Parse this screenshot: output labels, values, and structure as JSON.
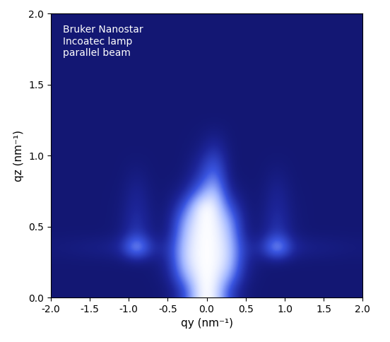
{
  "chart_data": {
    "type": "heatmap",
    "xlabel": "qy (nm⁻¹)",
    "ylabel": "qz (nm⁻¹)",
    "annotations": [
      "Bruker Nanostar\nIncoatec lamp\nparallel beam"
    ],
    "xlim": [
      -2.0,
      2.0
    ],
    "ylim": [
      0.0,
      2.0
    ],
    "xticks": [
      -2.0,
      -1.5,
      -1.0,
      -0.5,
      0.0,
      0.5,
      1.0,
      1.5,
      2.0
    ],
    "yticks": [
      0.0,
      0.5,
      1.0,
      1.5,
      2.0
    ],
    "x": [
      -1.9,
      -1.7,
      -1.5,
      -1.3,
      -1.1,
      -0.9,
      -0.7,
      -0.5,
      -0.3,
      -0.1,
      0.1,
      0.3,
      0.5,
      0.7,
      0.9,
      1.1,
      1.3,
      1.5,
      1.7,
      1.9
    ],
    "y": [
      0.05,
      0.15,
      0.25,
      0.35,
      0.45,
      0.55,
      0.65,
      0.75,
      0.85,
      0.95,
      1.05,
      1.15,
      1.25,
      1.35,
      1.45,
      1.55,
      1.65,
      1.75,
      1.85,
      1.95
    ],
    "zlim": [
      0,
      100
    ],
    "cells": [
      [
        12,
        12,
        12,
        12,
        12,
        12,
        12,
        14,
        40,
        100,
        100,
        40,
        14,
        12,
        12,
        12,
        12,
        12,
        12,
        12
      ],
      [
        12,
        12,
        12,
        12,
        12,
        12,
        12,
        20,
        70,
        100,
        100,
        70,
        20,
        12,
        12,
        12,
        12,
        12,
        12,
        12
      ],
      [
        12,
        12,
        12,
        12,
        12,
        13,
        14,
        25,
        85,
        100,
        100,
        85,
        25,
        14,
        13,
        12,
        12,
        12,
        12,
        12
      ],
      [
        16,
        18,
        20,
        22,
        30,
        95,
        30,
        30,
        85,
        100,
        100,
        85,
        30,
        30,
        95,
        30,
        22,
        20,
        18,
        16
      ],
      [
        12,
        12,
        12,
        12,
        16,
        40,
        16,
        18,
        80,
        100,
        100,
        80,
        18,
        16,
        40,
        16,
        12,
        12,
        12,
        12
      ],
      [
        12,
        12,
        12,
        12,
        15,
        35,
        15,
        16,
        70,
        100,
        100,
        70,
        16,
        15,
        35,
        15,
        12,
        12,
        12,
        12
      ],
      [
        12,
        12,
        12,
        12,
        14,
        30,
        14,
        14,
        45,
        100,
        100,
        45,
        14,
        14,
        30,
        14,
        12,
        12,
        12,
        12
      ],
      [
        12,
        12,
        12,
        12,
        13,
        26,
        13,
        13,
        22,
        60,
        90,
        22,
        13,
        13,
        26,
        13,
        12,
        12,
        12,
        12
      ],
      [
        12,
        12,
        12,
        12,
        12,
        20,
        12,
        12,
        14,
        35,
        70,
        14,
        12,
        12,
        20,
        12,
        12,
        12,
        12,
        12
      ],
      [
        12,
        12,
        12,
        12,
        12,
        14,
        12,
        12,
        12,
        25,
        55,
        12,
        12,
        12,
        14,
        12,
        12,
        12,
        12,
        12
      ],
      [
        12,
        12,
        12,
        12,
        12,
        12,
        12,
        12,
        12,
        16,
        35,
        12,
        12,
        12,
        12,
        12,
        12,
        12,
        12,
        12
      ],
      [
        12,
        12,
        12,
        12,
        12,
        12,
        12,
        12,
        12,
        13,
        20,
        12,
        12,
        12,
        12,
        12,
        12,
        12,
        12,
        12
      ],
      [
        12,
        12,
        12,
        12,
        12,
        12,
        12,
        12,
        12,
        12,
        12,
        12,
        12,
        12,
        12,
        12,
        12,
        12,
        12,
        12
      ],
      [
        12,
        12,
        12,
        12,
        12,
        12,
        12,
        12,
        12,
        12,
        12,
        12,
        12,
        12,
        12,
        12,
        12,
        12,
        12,
        12
      ],
      [
        12,
        12,
        12,
        12,
        12,
        12,
        12,
        12,
        12,
        12,
        12,
        12,
        12,
        12,
        12,
        12,
        12,
        12,
        12,
        12
      ],
      [
        12,
        12,
        12,
        12,
        12,
        12,
        12,
        12,
        12,
        12,
        12,
        12,
        12,
        12,
        12,
        12,
        12,
        12,
        12,
        12
      ],
      [
        12,
        12,
        12,
        12,
        12,
        12,
        12,
        12,
        12,
        12,
        12,
        12,
        12,
        12,
        12,
        12,
        12,
        12,
        12,
        12
      ],
      [
        12,
        12,
        12,
        12,
        12,
        12,
        12,
        12,
        12,
        12,
        12,
        12,
        12,
        12,
        12,
        12,
        12,
        12,
        12,
        12
      ],
      [
        12,
        12,
        12,
        12,
        12,
        12,
        12,
        12,
        12,
        12,
        12,
        12,
        12,
        12,
        12,
        12,
        12,
        12,
        12,
        12
      ],
      [
        12,
        12,
        12,
        12,
        12,
        12,
        12,
        12,
        12,
        12,
        12,
        12,
        12,
        12,
        12,
        12,
        12,
        12,
        12,
        12
      ]
    ]
  }
}
